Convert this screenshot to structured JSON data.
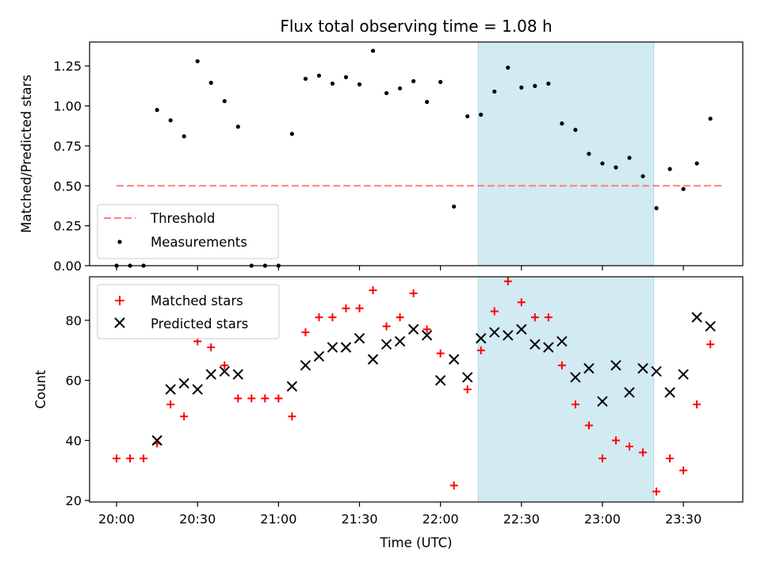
{
  "chart_data": [
    {
      "type": "scatter",
      "title": "Flux total observing time = 1.08 h",
      "xlabel": "",
      "ylabel": "Matched/Predicted stars",
      "ylim": [
        0,
        1.4
      ],
      "yticks": [
        0.0,
        0.25,
        0.5,
        0.75,
        1.0,
        1.25
      ],
      "ytick_labels": [
        "0.00",
        "0.25",
        "0.50",
        "0.75",
        "1.00",
        "1.25"
      ],
      "xlim_minutes_since_2000": [
        -10,
        232
      ],
      "x_ticks": [
        "20:00",
        "20:30",
        "21:00",
        "21:30",
        "22:00",
        "22:30",
        "23:00",
        "23:30"
      ],
      "shaded_span": {
        "start": "22:14",
        "end": "23:19",
        "color": "#add8e6"
      },
      "legend": {
        "placement": "lower-left",
        "entries": [
          "Threshold",
          "Measurements"
        ]
      },
      "threshold": {
        "name": "Threshold",
        "value": 0.5,
        "x_start": "20:00",
        "x_end": "23:45",
        "color": "#ff7f7f",
        "style": "dashed"
      },
      "series": [
        {
          "name": "Measurements",
          "color": "#000000",
          "points": [
            [
              "20:00",
              0.0
            ],
            [
              "20:05",
              0.0
            ],
            [
              "20:10",
              0.0
            ],
            [
              "20:15",
              0.975
            ],
            [
              "20:20",
              0.91
            ],
            [
              "20:25",
              0.81
            ],
            [
              "20:30",
              1.28
            ],
            [
              "20:35",
              1.145
            ],
            [
              "20:40",
              1.03
            ],
            [
              "20:45",
              0.87
            ],
            [
              "20:50",
              0.0
            ],
            [
              "20:55",
              0.0
            ],
            [
              "21:00",
              0.0
            ],
            [
              "21:05",
              0.825
            ],
            [
              "21:10",
              1.17
            ],
            [
              "21:15",
              1.19
            ],
            [
              "21:20",
              1.14
            ],
            [
              "21:25",
              1.18
            ],
            [
              "21:30",
              1.135
            ],
            [
              "21:35",
              1.345
            ],
            [
              "21:40",
              1.08
            ],
            [
              "21:45",
              1.11
            ],
            [
              "21:50",
              1.155
            ],
            [
              "21:55",
              1.025
            ],
            [
              "22:00",
              1.15
            ],
            [
              "22:05",
              0.37
            ],
            [
              "22:10",
              0.935
            ],
            [
              "22:15",
              0.945
            ],
            [
              "22:20",
              1.09
            ],
            [
              "22:25",
              1.24
            ],
            [
              "22:30",
              1.115
            ],
            [
              "22:35",
              1.125
            ],
            [
              "22:40",
              1.14
            ],
            [
              "22:45",
              0.89
            ],
            [
              "22:50",
              0.85
            ],
            [
              "22:55",
              0.7
            ],
            [
              "23:00",
              0.64
            ],
            [
              "23:05",
              0.615
            ],
            [
              "23:10",
              0.675
            ],
            [
              "23:15",
              0.56
            ],
            [
              "23:20",
              0.36
            ],
            [
              "23:25",
              0.605
            ],
            [
              "23:30",
              0.48
            ],
            [
              "23:35",
              0.64
            ],
            [
              "23:40",
              0.92
            ]
          ]
        }
      ]
    },
    {
      "type": "scatter",
      "title": "",
      "xlabel": "Time (UTC)",
      "ylabel": "Count",
      "ylim": [
        19.5,
        94.5
      ],
      "yticks": [
        20,
        40,
        60,
        80
      ],
      "ytick_labels": [
        "20",
        "40",
        "60",
        "80"
      ],
      "xlim_minutes_since_2000": [
        -10,
        232
      ],
      "x_ticks": [
        "20:00",
        "20:30",
        "21:00",
        "21:30",
        "22:00",
        "22:30",
        "23:00",
        "23:30"
      ],
      "shaded_span": {
        "start": "22:14",
        "end": "23:19",
        "color": "#add8e6"
      },
      "legend": {
        "placement": "upper-left",
        "entries": [
          "Matched stars",
          "Predicted stars"
        ]
      },
      "series": [
        {
          "name": "Matched stars",
          "marker": "plus",
          "color": "#ff0000",
          "points": [
            [
              "20:00",
              34
            ],
            [
              "20:05",
              34
            ],
            [
              "20:10",
              34
            ],
            [
              "20:15",
              39
            ],
            [
              "20:20",
              52
            ],
            [
              "20:25",
              48
            ],
            [
              "20:30",
              73
            ],
            [
              "20:35",
              71
            ],
            [
              "20:40",
              65
            ],
            [
              "20:45",
              54
            ],
            [
              "20:50",
              54
            ],
            [
              "20:55",
              54
            ],
            [
              "21:00",
              54
            ],
            [
              "21:05",
              48
            ],
            [
              "21:10",
              76
            ],
            [
              "21:15",
              81
            ],
            [
              "21:20",
              81
            ],
            [
              "21:25",
              84
            ],
            [
              "21:30",
              84
            ],
            [
              "21:35",
              90
            ],
            [
              "21:40",
              78
            ],
            [
              "21:45",
              81
            ],
            [
              "21:50",
              89
            ],
            [
              "21:55",
              77
            ],
            [
              "22:00",
              69
            ],
            [
              "22:05",
              25
            ],
            [
              "22:10",
              57
            ],
            [
              "22:15",
              70
            ],
            [
              "22:20",
              83
            ],
            [
              "22:25",
              93
            ],
            [
              "22:30",
              86
            ],
            [
              "22:35",
              81
            ],
            [
              "22:40",
              81
            ],
            [
              "22:45",
              65
            ],
            [
              "22:50",
              52
            ],
            [
              "22:55",
              45
            ],
            [
              "23:00",
              34
            ],
            [
              "23:05",
              40
            ],
            [
              "23:10",
              38
            ],
            [
              "23:15",
              36
            ],
            [
              "23:20",
              23
            ],
            [
              "23:25",
              34
            ],
            [
              "23:30",
              30
            ],
            [
              "23:35",
              52
            ],
            [
              "23:40",
              72
            ]
          ]
        },
        {
          "name": "Predicted stars",
          "marker": "x",
          "color": "#000000",
          "points": [
            [
              "20:15",
              40
            ],
            [
              "20:20",
              57
            ],
            [
              "20:25",
              59
            ],
            [
              "20:30",
              57
            ],
            [
              "20:35",
              62
            ],
            [
              "20:40",
              63
            ],
            [
              "20:45",
              62
            ],
            [
              "21:05",
              58
            ],
            [
              "21:10",
              65
            ],
            [
              "21:15",
              68
            ],
            [
              "21:20",
              71
            ],
            [
              "21:25",
              71
            ],
            [
              "21:30",
              74
            ],
            [
              "21:35",
              67
            ],
            [
              "21:40",
              72
            ],
            [
              "21:45",
              73
            ],
            [
              "21:50",
              77
            ],
            [
              "21:55",
              75
            ],
            [
              "22:00",
              60
            ],
            [
              "22:05",
              67
            ],
            [
              "22:10",
              61
            ],
            [
              "22:15",
              74
            ],
            [
              "22:20",
              76
            ],
            [
              "22:25",
              75
            ],
            [
              "22:30",
              77
            ],
            [
              "22:35",
              72
            ],
            [
              "22:40",
              71
            ],
            [
              "22:45",
              73
            ],
            [
              "22:50",
              61
            ],
            [
              "22:55",
              64
            ],
            [
              "23:00",
              53
            ],
            [
              "23:05",
              65
            ],
            [
              "23:10",
              56
            ],
            [
              "23:15",
              64
            ],
            [
              "23:20",
              63
            ],
            [
              "23:25",
              56
            ],
            [
              "23:30",
              62
            ],
            [
              "23:35",
              81
            ],
            [
              "23:40",
              78
            ]
          ]
        }
      ]
    }
  ]
}
